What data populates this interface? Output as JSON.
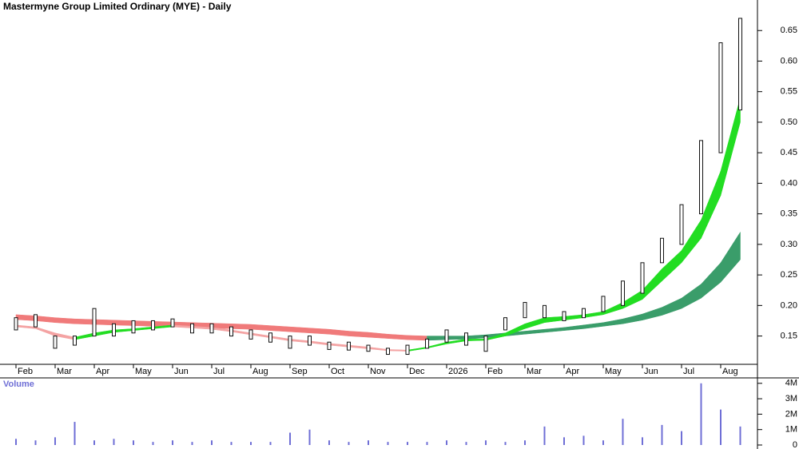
{
  "chart_data": [
    {
      "type": "candlestick",
      "title": "Mastermyne Group Limited Ordinary (MYE) - Daily",
      "categories": [
        "Feb",
        null,
        "Mar",
        null,
        "Apr",
        null,
        "May",
        null,
        "Jun",
        null,
        "Jul",
        null,
        "Aug",
        null,
        "Sep",
        null,
        "Oct",
        null,
        "Nov",
        null,
        "Dec",
        null,
        "2026",
        null,
        "Feb",
        null,
        "Mar",
        null,
        "Apr",
        null,
        "May",
        null,
        "Jun",
        null,
        "Jul",
        null,
        "Aug",
        null
      ],
      "low": [
        0.16,
        0.165,
        0.13,
        0.135,
        0.15,
        0.15,
        0.155,
        0.16,
        0.165,
        0.155,
        0.155,
        0.15,
        0.145,
        0.14,
        0.13,
        0.135,
        0.128,
        0.127,
        0.125,
        0.12,
        0.12,
        0.13,
        0.14,
        0.135,
        0.125,
        0.16,
        0.18,
        0.18,
        0.175,
        0.18,
        0.19,
        0.2,
        0.22,
        0.27,
        0.3,
        0.35,
        0.45,
        0.52
      ],
      "high": [
        0.18,
        0.185,
        0.15,
        0.15,
        0.195,
        0.17,
        0.175,
        0.175,
        0.178,
        0.17,
        0.17,
        0.165,
        0.16,
        0.155,
        0.15,
        0.15,
        0.14,
        0.14,
        0.135,
        0.13,
        0.135,
        0.145,
        0.16,
        0.155,
        0.15,
        0.18,
        0.205,
        0.2,
        0.19,
        0.195,
        0.215,
        0.24,
        0.27,
        0.31,
        0.365,
        0.47,
        0.63,
        0.67
      ],
      "color": "#111111",
      "bands": [
        {
          "upper": [
            0.168,
            0.165,
            0.155,
            0.148,
            0.155,
            0.16,
            0.162,
            0.165,
            0.168,
            0.166,
            0.164,
            0.16,
            0.155,
            0.15,
            0.145,
            0.142,
            0.138,
            0.135,
            0.132,
            0.128,
            0.127,
            0.132,
            0.14,
            0.145,
            0.145,
            0.155,
            0.17,
            0.18,
            0.182,
            0.185,
            0.19,
            0.205,
            0.225,
            0.26,
            0.29,
            0.34,
            0.42,
            0.54
          ],
          "lower": [
            0.165,
            0.162,
            0.15,
            0.144,
            0.15,
            0.156,
            0.159,
            0.162,
            0.165,
            0.163,
            0.161,
            0.157,
            0.152,
            0.147,
            0.142,
            0.139,
            0.135,
            0.132,
            0.129,
            0.126,
            0.125,
            0.13,
            0.137,
            0.142,
            0.143,
            0.15,
            0.162,
            0.172,
            0.176,
            0.18,
            0.185,
            0.195,
            0.21,
            0.24,
            0.27,
            0.31,
            0.38,
            0.5
          ],
          "rise_color": "#22dd22",
          "fall_color": "#f4a3a3"
        },
        {
          "upper": [
            0.185,
            0.183,
            0.18,
            0.178,
            0.177,
            0.176,
            0.175,
            0.174,
            0.173,
            0.172,
            0.171,
            0.17,
            0.169,
            0.167,
            0.165,
            0.163,
            0.161,
            0.158,
            0.156,
            0.153,
            0.151,
            0.15,
            0.15,
            0.15,
            0.152,
            0.155,
            0.158,
            0.161,
            0.164,
            0.168,
            0.172,
            0.178,
            0.186,
            0.197,
            0.212,
            0.235,
            0.27,
            0.32
          ],
          "lower": [
            0.177,
            0.175,
            0.172,
            0.17,
            0.169,
            0.168,
            0.167,
            0.166,
            0.165,
            0.164,
            0.163,
            0.162,
            0.161,
            0.159,
            0.157,
            0.155,
            0.153,
            0.15,
            0.148,
            0.146,
            0.144,
            0.143,
            0.144,
            0.145,
            0.147,
            0.15,
            0.153,
            0.156,
            0.159,
            0.162,
            0.166,
            0.17,
            0.176,
            0.184,
            0.195,
            0.212,
            0.238,
            0.275
          ],
          "rise_color": "#3a9d6a",
          "fall_color": "#f07a7a"
        }
      ],
      "ylim": [
        0.105,
        0.7
      ],
      "yticks": [
        0.15,
        {
          "value": 0.2,
          "label": "0.20"
        },
        0.25,
        {
          "value": 0.3,
          "label": "0.30"
        },
        0.35,
        {
          "value": 0.4,
          "label": "0.40"
        },
        0.45,
        {
          "value": 0.5,
          "label": "0.50"
        },
        0.55,
        {
          "value": 0.6,
          "label": "0.60"
        },
        0.65
      ]
    },
    {
      "type": "bar",
      "title": "Volume",
      "values": [
        0.4,
        0.3,
        0.5,
        1.5,
        0.3,
        0.4,
        0.3,
        0.2,
        0.3,
        0.2,
        0.3,
        0.2,
        0.2,
        0.2,
        0.8,
        1.0,
        0.3,
        0.2,
        0.3,
        0.2,
        0.2,
        0.2,
        0.3,
        0.2,
        0.3,
        0.2,
        0.3,
        1.2,
        0.5,
        0.6,
        0.3,
        1.7,
        0.5,
        1.3,
        0.9,
        4.0,
        2.3,
        1.2
      ],
      "color": "#6f6fd6",
      "ylim": [
        0,
        4.3
      ],
      "yticks": [
        0,
        {
          "value": 1,
          "label": "1M"
        },
        {
          "value": 2,
          "label": "2M"
        },
        {
          "value": 3,
          "label": "3M"
        },
        {
          "value": 4,
          "label": "4M"
        }
      ]
    }
  ]
}
